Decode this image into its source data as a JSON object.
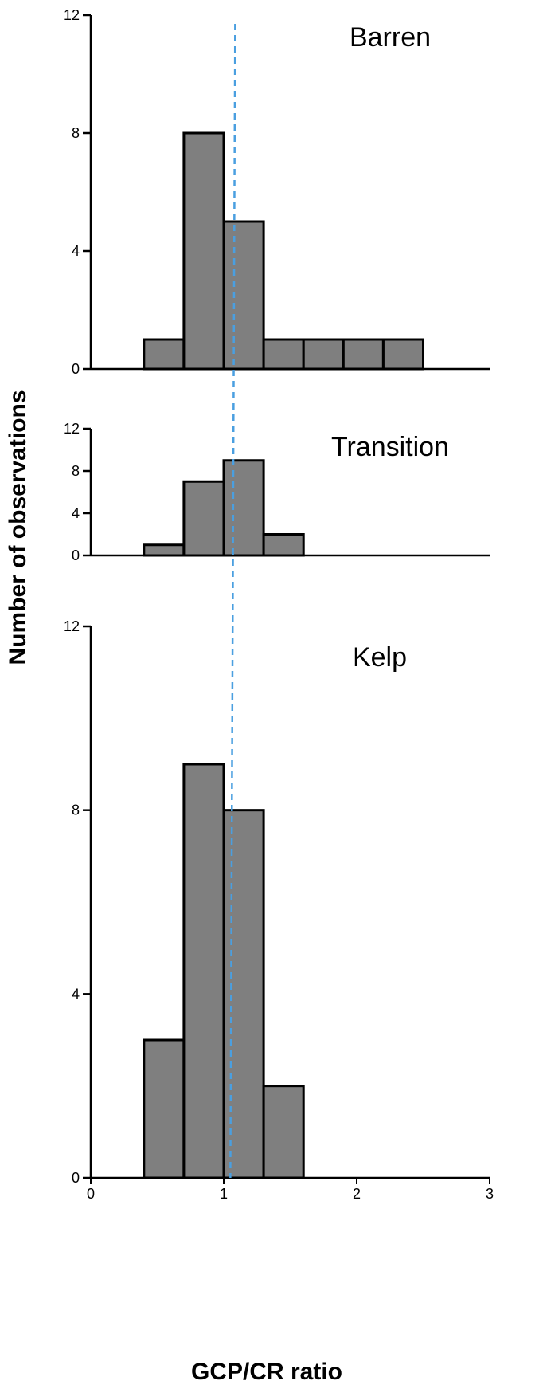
{
  "chart_data": {
    "type": "bar",
    "ylabel": "Number of observations",
    "xlabel": "GCP/CR ratio",
    "x_ticks": [
      0,
      1,
      2,
      3
    ],
    "x_tick_labels": [
      "0",
      "1",
      "2",
      "3"
    ],
    "xlim": [
      0,
      3
    ],
    "reference_line_x": 1.05,
    "bar_color": "#7f7f7f",
    "reference_line_color": "#4a9fe0",
    "panels": [
      {
        "title": "Barren",
        "y_ticks": [
          0,
          4,
          8,
          12
        ],
        "y_tick_labels": [
          "0",
          "4",
          "8",
          "12"
        ],
        "ylim": [
          0,
          12
        ],
        "bins": [
          {
            "x0": 0.4,
            "x1": 0.7,
            "value": 1
          },
          {
            "x0": 0.7,
            "x1": 1.0,
            "value": 8
          },
          {
            "x0": 1.0,
            "x1": 1.3,
            "value": 5
          },
          {
            "x0": 1.3,
            "x1": 1.6,
            "value": 1
          },
          {
            "x0": 1.6,
            "x1": 1.9,
            "value": 1
          },
          {
            "x0": 1.9,
            "x1": 2.2,
            "value": 1
          },
          {
            "x0": 2.2,
            "x1": 2.5,
            "value": 1
          }
        ]
      },
      {
        "title": "Transition",
        "y_ticks": [
          0,
          4,
          8,
          12
        ],
        "y_tick_labels": [
          "0",
          "4",
          "8",
          "12"
        ],
        "ylim": [
          0,
          12
        ],
        "bins": [
          {
            "x0": 0.4,
            "x1": 0.7,
            "value": 1
          },
          {
            "x0": 0.7,
            "x1": 1.0,
            "value": 7
          },
          {
            "x0": 1.0,
            "x1": 1.3,
            "value": 9
          },
          {
            "x0": 1.3,
            "x1": 1.6,
            "value": 2
          }
        ]
      },
      {
        "title": "Kelp",
        "y_ticks": [
          0,
          4,
          8,
          12
        ],
        "y_tick_labels": [
          "0",
          "4",
          "8",
          "12"
        ],
        "ylim": [
          0,
          12
        ],
        "bins": [
          {
            "x0": 0.4,
            "x1": 0.7,
            "value": 3
          },
          {
            "x0": 0.7,
            "x1": 1.0,
            "value": 9
          },
          {
            "x0": 1.0,
            "x1": 1.3,
            "value": 8
          },
          {
            "x0": 1.3,
            "x1": 1.6,
            "value": 2
          }
        ]
      }
    ]
  }
}
